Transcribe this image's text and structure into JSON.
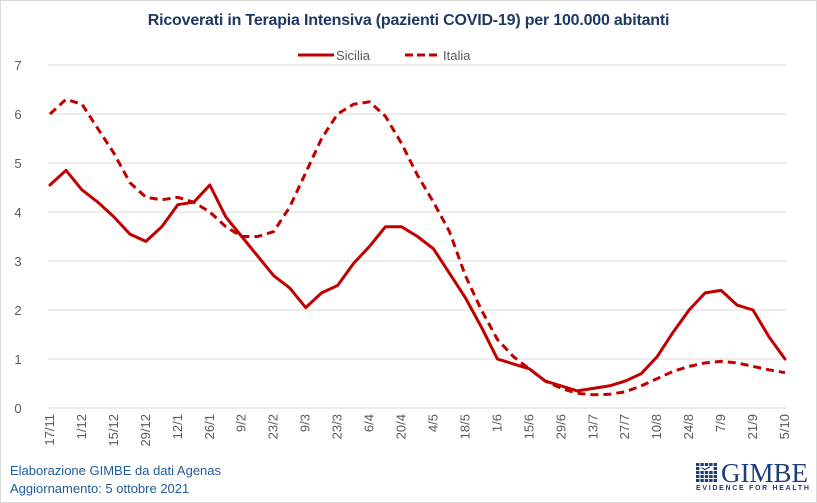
{
  "chart_data": {
    "type": "line",
    "title": "Ricoverati in Terapia Intensiva (pazienti COVID-19) per 100.000 abitanti",
    "xlabel": "",
    "ylabel": "",
    "ylim": [
      0,
      7
    ],
    "yticks": [
      "0",
      "1",
      "2",
      "3",
      "4",
      "5",
      "6",
      "7"
    ],
    "grid": true,
    "legend_position": "top-center",
    "xtick_labels": [
      "17/11",
      "1/12",
      "15/12",
      "29/12",
      "12/1",
      "26/1",
      "9/2",
      "23/2",
      "9/3",
      "23/3",
      "6/4",
      "20/4",
      "4/5",
      "18/5",
      "1/6",
      "15/6",
      "29/6",
      "13/7",
      "27/7",
      "10/8",
      "24/8",
      "7/9",
      "21/9",
      "5/10"
    ],
    "x": [
      "17/11",
      "24/11",
      "1/12",
      "8/12",
      "15/12",
      "22/12",
      "29/12",
      "5/1",
      "12/1",
      "19/1",
      "26/1",
      "2/2",
      "9/2",
      "16/2",
      "23/2",
      "2/3",
      "9/3",
      "16/3",
      "23/3",
      "30/3",
      "6/4",
      "13/4",
      "20/4",
      "27/4",
      "4/5",
      "11/5",
      "18/5",
      "25/5",
      "1/6",
      "8/6",
      "15/6",
      "22/6",
      "29/6",
      "6/7",
      "13/7",
      "20/7",
      "27/7",
      "3/8",
      "10/8",
      "17/8",
      "24/8",
      "31/8",
      "7/9",
      "14/9",
      "21/9",
      "28/9",
      "5/10"
    ],
    "series": [
      {
        "name": "Sicilia",
        "style": "solid",
        "color": "#c00000",
        "values": [
          4.55,
          4.85,
          4.45,
          4.2,
          3.9,
          3.55,
          3.4,
          3.7,
          4.15,
          4.2,
          4.55,
          3.9,
          3.5,
          3.1,
          2.7,
          2.45,
          2.05,
          2.35,
          2.5,
          2.95,
          3.3,
          3.7,
          3.7,
          3.5,
          3.25,
          2.75,
          2.25,
          1.65,
          1.0,
          0.9,
          0.8,
          0.55,
          0.45,
          0.35,
          0.4,
          0.45,
          0.55,
          0.7,
          1.05,
          1.55,
          2.0,
          2.35,
          2.4,
          2.1,
          2.0,
          1.45,
          1.0
        ]
      },
      {
        "name": "Italia",
        "style": "dashed",
        "color": "#c00000",
        "values": [
          6.0,
          6.3,
          6.2,
          5.7,
          5.2,
          4.6,
          4.3,
          4.25,
          4.3,
          4.2,
          4.0,
          3.7,
          3.5,
          3.5,
          3.6,
          4.1,
          4.8,
          5.5,
          6.0,
          6.2,
          6.25,
          5.95,
          5.4,
          4.75,
          4.2,
          3.6,
          2.7,
          2.0,
          1.4,
          1.05,
          0.8,
          0.55,
          0.4,
          0.3,
          0.27,
          0.28,
          0.33,
          0.45,
          0.6,
          0.75,
          0.85,
          0.92,
          0.95,
          0.92,
          0.85,
          0.78,
          0.72
        ]
      }
    ]
  },
  "footer": {
    "line1": "Elaborazione GIMBE da dati Agenas",
    "line2": "Aggiornamento: 5 ottobre 2021"
  },
  "logo": {
    "name": "GIMBE",
    "tagline": "EVIDENCE FOR HEALTH"
  },
  "colors": {
    "series": "#c00000",
    "title": "#1f3864",
    "footer": "#1f5c99",
    "grid": "#d9d9d9",
    "tick": "#595959"
  }
}
